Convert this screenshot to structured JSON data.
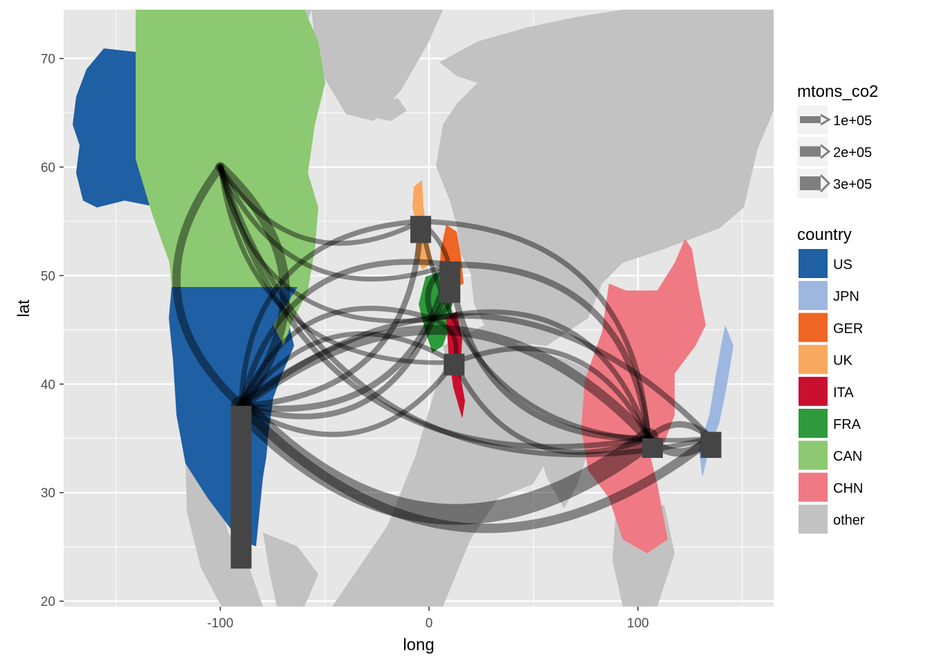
{
  "chart_data": {
    "type": "map",
    "xlabel": "long",
    "ylabel": "lat",
    "xlim": [
      -175,
      165
    ],
    "ylim": [
      19.5,
      74.5
    ],
    "x_ticks": [
      -100,
      0,
      100
    ],
    "x_tick_labels": [
      "-100",
      "0",
      "100"
    ],
    "y_ticks": [
      20,
      30,
      40,
      50,
      60,
      70
    ],
    "y_tick_labels": [
      "20",
      "30",
      "40",
      "50",
      "60",
      "70"
    ],
    "grid": true,
    "legend_position": "right",
    "colors": {
      "US": "#1f5fa3",
      "JPN": "#9db7e0",
      "GER": "#ef6523",
      "UK": "#f8a85f",
      "ITA": "#c8102e",
      "FRA": "#2e9a3c",
      "CAN": "#8dc872",
      "CHN": "#f07a83",
      "other": "#c2c2c2",
      "panel": "#e6e6e6",
      "gridline": "#ffffff",
      "flow": "#000000",
      "bar": "#454545"
    },
    "size_legend": {
      "title": "mtons_co2",
      "entries": [
        {
          "label": "1e+05",
          "value": 100000
        },
        {
          "label": "2e+05",
          "value": 200000
        },
        {
          "label": "3e+05",
          "value": 300000
        }
      ]
    },
    "fill_legend": {
      "title": "country",
      "entries": [
        {
          "label": "US",
          "key": "US"
        },
        {
          "label": "JPN",
          "key": "JPN"
        },
        {
          "label": "GER",
          "key": "GER"
        },
        {
          "label": "UK",
          "key": "UK"
        },
        {
          "label": "ITA",
          "key": "ITA"
        },
        {
          "label": "FRA",
          "key": "FRA"
        },
        {
          "label": "CAN",
          "key": "CAN"
        },
        {
          "label": "CHN",
          "key": "CHN"
        },
        {
          "label": "other",
          "key": "other"
        }
      ]
    },
    "nodes": [
      {
        "id": "US",
        "long": -90,
        "lat": 38
      },
      {
        "id": "CAN",
        "long": -100,
        "lat": 60
      },
      {
        "id": "UK",
        "long": -4,
        "lat": 55
      },
      {
        "id": "GER",
        "long": 10,
        "lat": 51
      },
      {
        "id": "FRA",
        "long": 2,
        "lat": 46
      },
      {
        "id": "ITA",
        "long": 12,
        "lat": 42
      },
      {
        "id": "CHN",
        "long": 105,
        "lat": 35
      },
      {
        "id": "JPN",
        "long": 135,
        "lat": 35
      }
    ],
    "bars": [
      {
        "country": "US",
        "long": -90,
        "lat_low": 23,
        "lat_high": 38
      },
      {
        "country": "UK",
        "long": -4,
        "lat_low": 53,
        "lat_high": 55.5
      },
      {
        "country": "GER",
        "long": 10,
        "lat_low": 47.5,
        "lat_high": 51.3
      },
      {
        "country": "ITA",
        "long": 12,
        "lat_low": 40.8,
        "lat_high": 42.8
      },
      {
        "country": "CHN",
        "long": 107,
        "lat_low": 33.2,
        "lat_high": 35
      },
      {
        "country": "JPN",
        "long": 135,
        "lat_low": 33.2,
        "lat_high": 35.6
      }
    ],
    "flows": [
      {
        "from": "US",
        "to": "CHN",
        "mtons_co2": 300000
      },
      {
        "from": "US",
        "to": "JPN",
        "mtons_co2": 110000
      },
      {
        "from": "US",
        "to": "CAN",
        "mtons_co2": 120000
      },
      {
        "from": "CAN",
        "to": "US",
        "mtons_co2": 90000
      },
      {
        "from": "US",
        "to": "GER",
        "mtons_co2": 60000
      },
      {
        "from": "US",
        "to": "FRA",
        "mtons_co2": 50000
      },
      {
        "from": "US",
        "to": "ITA",
        "mtons_co2": 40000
      },
      {
        "from": "US",
        "to": "UK",
        "mtons_co2": 50000
      },
      {
        "from": "CAN",
        "to": "CHN",
        "mtons_co2": 45000
      },
      {
        "from": "CAN",
        "to": "UK",
        "mtons_co2": 35000
      },
      {
        "from": "CAN",
        "to": "GER",
        "mtons_co2": 35000
      },
      {
        "from": "CAN",
        "to": "FRA",
        "mtons_co2": 30000
      },
      {
        "from": "CAN",
        "to": "ITA",
        "mtons_co2": 30000
      },
      {
        "from": "CAN",
        "to": "JPN",
        "mtons_co2": 40000
      },
      {
        "from": "CHN",
        "to": "US",
        "mtons_co2": 120000
      },
      {
        "from": "CHN",
        "to": "JPN",
        "mtons_co2": 100000
      },
      {
        "from": "CHN",
        "to": "GER",
        "mtons_co2": 60000
      },
      {
        "from": "CHN",
        "to": "UK",
        "mtons_co2": 40000
      },
      {
        "from": "CHN",
        "to": "ITA",
        "mtons_co2": 40000
      },
      {
        "from": "CHN",
        "to": "FRA",
        "mtons_co2": 40000
      },
      {
        "from": "JPN",
        "to": "US",
        "mtons_co2": 50000
      },
      {
        "from": "JPN",
        "to": "CHN",
        "mtons_co2": 60000
      },
      {
        "from": "GER",
        "to": "US",
        "mtons_co2": 50000
      },
      {
        "from": "GER",
        "to": "FRA",
        "mtons_co2": 50000
      },
      {
        "from": "GER",
        "to": "CHN",
        "mtons_co2": 60000
      },
      {
        "from": "FRA",
        "to": "US",
        "mtons_co2": 40000
      },
      {
        "from": "FRA",
        "to": "UK",
        "mtons_co2": 30000
      },
      {
        "from": "FRA",
        "to": "GER",
        "mtons_co2": 35000
      },
      {
        "from": "UK",
        "to": "US",
        "mtons_co2": 40000
      },
      {
        "from": "UK",
        "to": "JPN",
        "mtons_co2": 30000
      },
      {
        "from": "ITA",
        "to": "FRA",
        "mtons_co2": 30000
      },
      {
        "from": "ITA",
        "to": "CHN",
        "mtons_co2": 40000
      },
      {
        "from": "ITA",
        "to": "US",
        "mtons_co2": 35000
      }
    ]
  }
}
